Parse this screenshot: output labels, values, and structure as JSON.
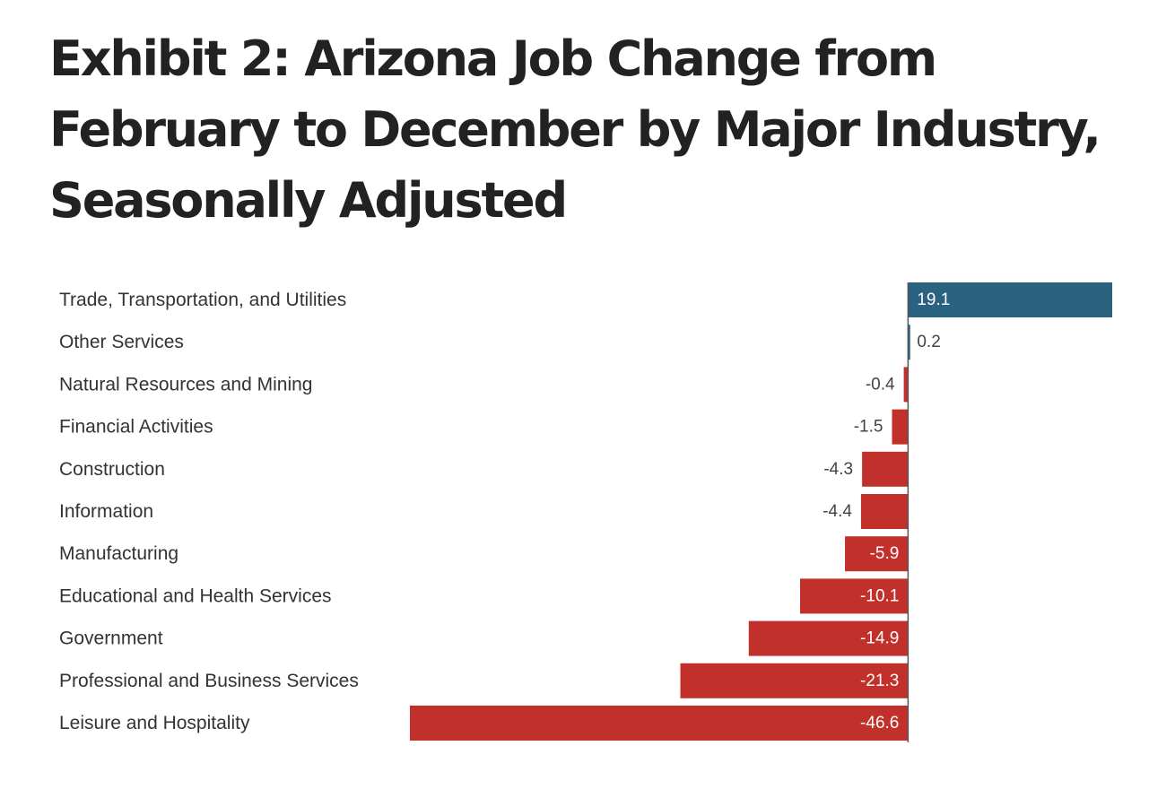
{
  "title": "Exhibit 2: Arizona Job Change from February to December by Major Industry, Seasonally Adjusted",
  "chart_data": {
    "type": "bar",
    "orientation": "horizontal",
    "categories": [
      "Trade, Transportation, and Utilities",
      "Other Services",
      "Natural Resources and Mining",
      "Financial Activities",
      "Construction",
      "Information",
      "Manufacturing",
      "Educational and Health Services",
      "Government",
      "Professional and Business Services",
      "Leisure and Hospitality"
    ],
    "values": [
      19.1,
      0.2,
      -0.4,
      -1.5,
      -4.3,
      -4.4,
      -5.9,
      -10.1,
      -14.9,
      -21.3,
      -46.6
    ],
    "value_labels": [
      "19.1",
      "0.2",
      "-0.4",
      "-1.5",
      "-4.3",
      "-4.4",
      "-5.9",
      "-10.1",
      "-14.9",
      "-21.3",
      "-46.6"
    ],
    "xlim": [
      -46.6,
      19.1
    ],
    "colors": {
      "positive": "#2b6280",
      "negative": "#c1302a",
      "baseline": "#555555",
      "label_inside": "#ffffff",
      "label_outside": "#444444"
    },
    "grid": false,
    "legend": "none"
  }
}
